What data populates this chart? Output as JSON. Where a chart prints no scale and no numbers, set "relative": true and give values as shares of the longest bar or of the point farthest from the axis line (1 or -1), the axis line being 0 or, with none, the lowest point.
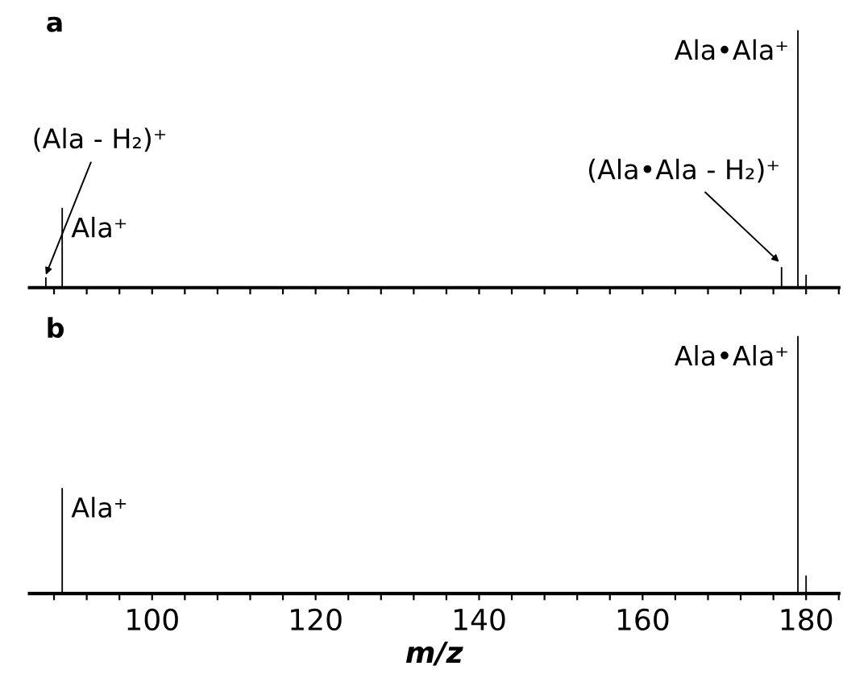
{
  "chart_data": [
    {
      "type": "bar",
      "title": "a",
      "relative": true,
      "tick_labels": false,
      "color": "#000000",
      "x": [
        87,
        89,
        177,
        179,
        180
      ],
      "values": [
        0.04,
        0.31,
        0.08,
        1,
        0.05
      ],
      "xlim": [
        85,
        184
      ],
      "xticks": [
        {
          "value": 88,
          "label": null
        },
        {
          "value": 92,
          "label": null
        },
        {
          "value": 96,
          "label": null
        },
        {
          "value": 100,
          "label": null
        },
        {
          "value": 104,
          "label": null
        },
        {
          "value": 108,
          "label": null
        },
        {
          "value": 112,
          "label": null
        },
        {
          "value": 116,
          "label": null
        },
        {
          "value": 120,
          "label": null
        },
        {
          "value": 124,
          "label": null
        },
        {
          "value": 128,
          "label": null
        },
        {
          "value": 132,
          "label": null
        },
        {
          "value": 136,
          "label": null
        },
        {
          "value": 140,
          "label": null
        },
        {
          "value": 144,
          "label": null
        },
        {
          "value": 148,
          "label": null
        },
        {
          "value": 152,
          "label": null
        },
        {
          "value": 156,
          "label": null
        },
        {
          "value": 160,
          "label": null
        },
        {
          "value": 164,
          "label": null
        },
        {
          "value": 168,
          "label": null
        },
        {
          "value": 172,
          "label": null
        },
        {
          "value": 176,
          "label": null
        },
        {
          "value": 180,
          "label": null
        },
        {
          "value": 184,
          "label": null
        }
      ],
      "annotations": [
        {
          "text": "(Ala - H₂)⁺",
          "x": 87,
          "y": 0.04
        },
        {
          "text": "Ala⁺",
          "x": 89,
          "y": 0.31
        },
        {
          "text": "(Ala•Ala - H₂)⁺",
          "x": 177,
          "y": 0.08
        },
        {
          "text": "Ala•Ala⁺",
          "x": 179,
          "y": 1
        }
      ]
    },
    {
      "type": "bar",
      "title": "b",
      "relative": true,
      "tick_labels": "x",
      "color": "#000000",
      "xlabel": "m/z",
      "x": [
        89,
        179,
        180
      ],
      "values": [
        0.41,
        1,
        0.07
      ],
      "xlim": [
        85,
        184
      ],
      "xticks": [
        {
          "value": 88,
          "label": null
        },
        {
          "value": 92,
          "label": null
        },
        {
          "value": 96,
          "label": null
        },
        100,
        {
          "value": 104,
          "label": null
        },
        {
          "value": 108,
          "label": null
        },
        {
          "value": 112,
          "label": null
        },
        {
          "value": 116,
          "label": null
        },
        120,
        {
          "value": 124,
          "label": null
        },
        {
          "value": 128,
          "label": null
        },
        {
          "value": 132,
          "label": null
        },
        {
          "value": 136,
          "label": null
        },
        140,
        {
          "value": 144,
          "label": null
        },
        {
          "value": 148,
          "label": null
        },
        {
          "value": 152,
          "label": null
        },
        {
          "value": 156,
          "label": null
        },
        160,
        {
          "value": 164,
          "label": null
        },
        {
          "value": 168,
          "label": null
        },
        {
          "value": 172,
          "label": null
        },
        {
          "value": 176,
          "label": null
        },
        180,
        {
          "value": 184,
          "label": null
        }
      ],
      "annotations": [
        {
          "text": "Ala⁺",
          "x": 89,
          "y": 0.41
        },
        {
          "text": "Ala•Ala⁺",
          "x": 179,
          "y": 1
        }
      ]
    }
  ]
}
